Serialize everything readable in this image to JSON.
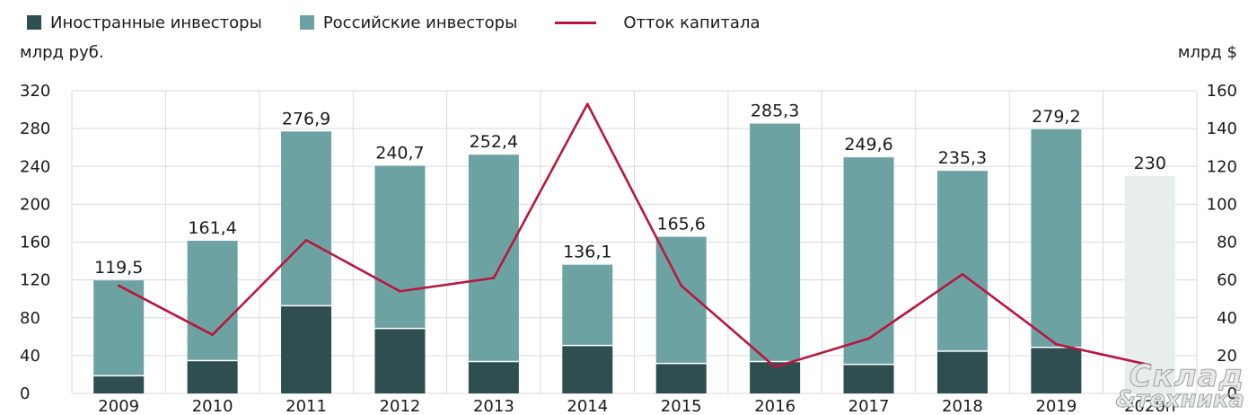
{
  "legend": {
    "foreign": "Иностранные инвесторы",
    "russian": "Российские инвесторы",
    "outflow": "Отток капитала"
  },
  "units": {
    "left": "млрд руб.",
    "right": "млрд $"
  },
  "watermark": {
    "line1": "Склад",
    "line2": "&техника"
  },
  "colors": {
    "foreign": "#2f4e50",
    "russian": "#6da2a3",
    "forecast": "#e8eeec",
    "outflow": "#b8163e",
    "grid": "#d9d9d9"
  },
  "chart_data": {
    "type": "bar",
    "categories": [
      "2009",
      "2010",
      "2011",
      "2012",
      "2013",
      "2014",
      "2015",
      "2016",
      "2017",
      "2018",
      "2019",
      "2020п"
    ],
    "series": [
      {
        "name": "Иностранные инвесторы",
        "values": [
          18,
          34,
          92,
          68,
          33,
          50,
          31,
          33,
          30,
          44,
          48,
          null
        ]
      },
      {
        "name": "Российские инвесторы",
        "values": [
          101.5,
          127.4,
          184.9,
          172.7,
          219.4,
          86.1,
          134.6,
          252.3,
          219.6,
          191.3,
          231.2,
          null
        ]
      }
    ],
    "totals": [
      119.5,
      161.4,
      276.9,
      240.7,
      252.4,
      136.1,
      165.6,
      285.3,
      249.6,
      235.3,
      279.2,
      230
    ],
    "total_labels": [
      "119,5",
      "161,4",
      "276,9",
      "240,7",
      "252,4",
      "136,1",
      "165,6",
      "285,3",
      "249,6",
      "235,3",
      "279,2",
      "230"
    ],
    "forecast_total": 230,
    "line": {
      "name": "Отток капитала",
      "values": [
        57,
        31,
        81,
        54,
        61,
        153,
        57,
        14,
        29,
        63,
        26,
        15
      ]
    },
    "yleft": {
      "ylim": [
        0,
        320
      ],
      "ticks": [
        0,
        40,
        80,
        120,
        160,
        200,
        240,
        280,
        320
      ]
    },
    "yright": {
      "ylim": [
        0,
        160
      ],
      "ticks": [
        0,
        20,
        40,
        60,
        80,
        100,
        120,
        140,
        160
      ]
    },
    "grid": true,
    "legend_position": "top"
  }
}
